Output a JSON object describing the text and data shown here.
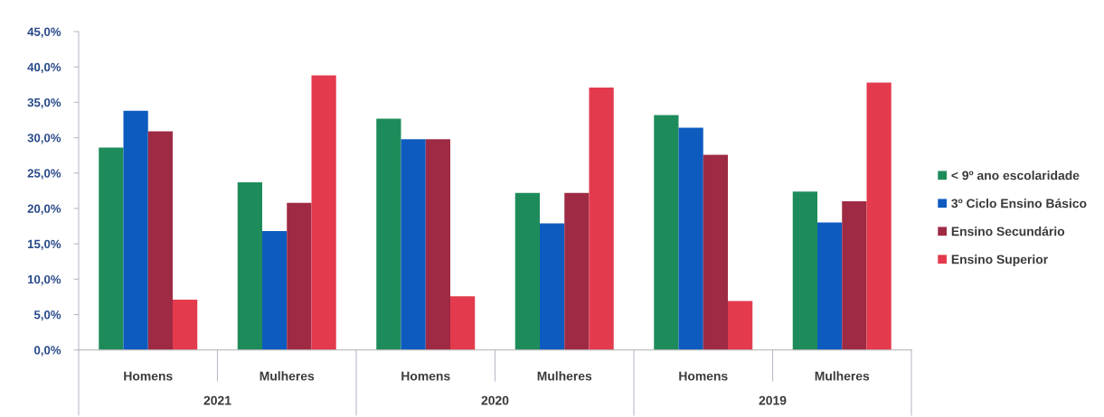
{
  "chart_data": {
    "type": "bar",
    "categories": [
      "Homens",
      "Mulheres",
      "Homens",
      "Mulheres",
      "Homens",
      "Mulheres"
    ],
    "series": [
      {
        "name": "< 9º ano escolaridade",
        "color": "#1e8c5a",
        "values": [
          28.6,
          23.7,
          32.7,
          22.2,
          33.2,
          22.4
        ]
      },
      {
        "name": "3º Ciclo Ensino Básico",
        "color": "#0d5bbf",
        "values": [
          33.8,
          16.8,
          29.8,
          17.9,
          31.4,
          18.0
        ]
      },
      {
        "name": "Ensino Secundário",
        "color": "#9e2a44",
        "values": [
          30.9,
          20.8,
          29.8,
          22.2,
          27.6,
          21.0
        ]
      },
      {
        "name": "Ensino Superior",
        "color": "#e33b4d",
        "values": [
          7.1,
          38.8,
          7.6,
          37.1,
          6.9,
          37.8
        ]
      }
    ],
    "ylim": [
      0,
      45
    ],
    "yticks": [
      {
        "value": 0,
        "label": "0,0%"
      },
      {
        "value": 5,
        "label": "5,0%"
      },
      {
        "value": 10,
        "label": "10,0%"
      },
      {
        "value": 15,
        "label": "15,0%"
      },
      {
        "value": 20,
        "label": "20,0%"
      },
      {
        "value": 25,
        "label": "25,0%"
      },
      {
        "value": 30,
        "label": "30,0%"
      },
      {
        "value": 35,
        "label": "35,0%"
      },
      {
        "value": 40,
        "label": "40,0%"
      },
      {
        "value": 45,
        "label": "45,0%"
      }
    ],
    "annotations": [
      "2021",
      "2020",
      "2019"
    ],
    "legend": "right",
    "grid": false
  }
}
